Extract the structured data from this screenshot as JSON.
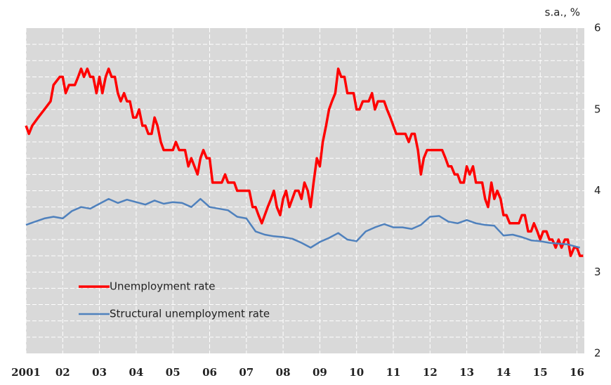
{
  "chart_data": {
    "type": "line",
    "unit_label": "s.a., %",
    "xlim": [
      2001,
      2016.2
    ],
    "ylim": [
      2,
      6
    ],
    "yticks": [
      2,
      3,
      4,
      5,
      6
    ],
    "ygrid": [
      2.2,
      2.4,
      2.6,
      2.8,
      3,
      3.2,
      3.4,
      3.6,
      3.8,
      4,
      4.2,
      4.4,
      4.6,
      4.8,
      5,
      5.2,
      5.4,
      5.6,
      5.8
    ],
    "xticks": [
      {
        "value": 2001,
        "label": "2001"
      },
      {
        "value": 2002,
        "label": "02"
      },
      {
        "value": 2003,
        "label": "03"
      },
      {
        "value": 2004,
        "label": "04"
      },
      {
        "value": 2005,
        "label": "05"
      },
      {
        "value": 2006,
        "label": "06"
      },
      {
        "value": 2007,
        "label": "07"
      },
      {
        "value": 2008,
        "label": "08"
      },
      {
        "value": 2009,
        "label": "09"
      },
      {
        "value": 2010,
        "label": "10"
      },
      {
        "value": 2011,
        "label": "11"
      },
      {
        "value": 2012,
        "label": "12"
      },
      {
        "value": 2013,
        "label": "13"
      },
      {
        "value": 2014,
        "label": "14"
      },
      {
        "value": 2015,
        "label": "15"
      },
      {
        "value": 2016,
        "label": "16"
      }
    ],
    "grid": true,
    "legend": "lower-left",
    "series": [
      {
        "name": "Unemployment rate",
        "color": "#ff0000",
        "width": 3.5,
        "x": [
          2001.0,
          2001.08,
          2001.17,
          2001.33,
          2001.5,
          2001.67,
          2001.75,
          2001.92,
          2002.0,
          2002.08,
          2002.17,
          2002.33,
          2002.42,
          2002.5,
          2002.58,
          2002.67,
          2002.75,
          2002.83,
          2002.92,
          2003.0,
          2003.08,
          2003.17,
          2003.25,
          2003.33,
          2003.42,
          2003.5,
          2003.58,
          2003.67,
          2003.75,
          2003.83,
          2003.92,
          2004.0,
          2004.08,
          2004.17,
          2004.25,
          2004.33,
          2004.42,
          2004.5,
          2004.58,
          2004.67,
          2004.75,
          2004.83,
          2005.0,
          2005.08,
          2005.17,
          2005.33,
          2005.42,
          2005.5,
          2005.67,
          2005.75,
          2005.83,
          2005.92,
          2006.0,
          2006.08,
          2006.25,
          2006.33,
          2006.42,
          2006.5,
          2006.67,
          2006.75,
          2006.92,
          2007.0,
          2007.08,
          2007.17,
          2007.25,
          2007.33,
          2007.42,
          2007.5,
          2007.58,
          2007.67,
          2007.75,
          2007.83,
          2007.92,
          2008.0,
          2008.08,
          2008.17,
          2008.25,
          2008.33,
          2008.42,
          2008.5,
          2008.58,
          2008.67,
          2008.75,
          2008.83,
          2008.92,
          2009.0,
          2009.08,
          2009.17,
          2009.25,
          2009.33,
          2009.42,
          2009.5,
          2009.58,
          2009.67,
          2009.75,
          2009.83,
          2009.92,
          2010.0,
          2010.08,
          2010.17,
          2010.25,
          2010.33,
          2010.42,
          2010.5,
          2010.58,
          2010.67,
          2010.75,
          2010.83,
          2010.92,
          2011.0,
          2011.08,
          2011.17,
          2011.33,
          2011.42,
          2011.5,
          2011.58,
          2011.67,
          2011.75,
          2011.83,
          2011.92,
          2012.0,
          2012.17,
          2012.33,
          2012.42,
          2012.5,
          2012.58,
          2012.67,
          2012.75,
          2012.83,
          2012.92,
          2013.0,
          2013.08,
          2013.17,
          2013.25,
          2013.33,
          2013.42,
          2013.5,
          2013.58,
          2013.67,
          2013.75,
          2013.83,
          2013.92,
          2014.0,
          2014.08,
          2014.17,
          2014.33,
          2014.42,
          2014.5,
          2014.58,
          2014.67,
          2014.75,
          2014.83,
          2014.92,
          2015.0,
          2015.08,
          2015.17,
          2015.25,
          2015.33,
          2015.42,
          2015.5,
          2015.58,
          2015.67,
          2015.75,
          2015.83,
          2015.92,
          2016.0,
          2016.08,
          2016.17
        ],
        "values": [
          4.8,
          4.7,
          4.8,
          4.9,
          5.0,
          5.1,
          5.3,
          5.4,
          5.4,
          5.2,
          5.3,
          5.3,
          5.4,
          5.5,
          5.4,
          5.5,
          5.4,
          5.4,
          5.2,
          5.4,
          5.2,
          5.4,
          5.5,
          5.4,
          5.4,
          5.2,
          5.1,
          5.2,
          5.1,
          5.1,
          4.9,
          4.9,
          5.0,
          4.8,
          4.8,
          4.7,
          4.7,
          4.9,
          4.8,
          4.6,
          4.5,
          4.5,
          4.5,
          4.6,
          4.5,
          4.5,
          4.3,
          4.4,
          4.2,
          4.4,
          4.5,
          4.4,
          4.4,
          4.1,
          4.1,
          4.1,
          4.2,
          4.1,
          4.1,
          4.0,
          4.0,
          4.0,
          4.0,
          3.8,
          3.8,
          3.7,
          3.6,
          3.7,
          3.8,
          3.9,
          4.0,
          3.8,
          3.7,
          3.9,
          4.0,
          3.8,
          3.9,
          4.0,
          4.0,
          3.9,
          4.1,
          4.0,
          3.8,
          4.1,
          4.4,
          4.3,
          4.6,
          4.8,
          5.0,
          5.1,
          5.2,
          5.5,
          5.4,
          5.4,
          5.2,
          5.2,
          5.2,
          5.0,
          5.0,
          5.1,
          5.1,
          5.1,
          5.2,
          5.0,
          5.1,
          5.1,
          5.1,
          5.0,
          4.9,
          4.8,
          4.7,
          4.7,
          4.7,
          4.6,
          4.7,
          4.7,
          4.5,
          4.2,
          4.4,
          4.5,
          4.5,
          4.5,
          4.5,
          4.4,
          4.3,
          4.3,
          4.2,
          4.2,
          4.1,
          4.1,
          4.3,
          4.2,
          4.3,
          4.1,
          4.1,
          4.1,
          3.9,
          3.8,
          4.1,
          3.9,
          4.0,
          3.9,
          3.7,
          3.7,
          3.6,
          3.6,
          3.6,
          3.7,
          3.7,
          3.5,
          3.5,
          3.6,
          3.5,
          3.4,
          3.5,
          3.5,
          3.4,
          3.4,
          3.3,
          3.4,
          3.3,
          3.4,
          3.4,
          3.2,
          3.3,
          3.3,
          3.2,
          3.2
        ]
      },
      {
        "name": "Structural unemployment rate",
        "color": "#4f81bd",
        "width": 2.5,
        "x": [
          2001.0,
          2001.5,
          2001.75,
          2002.0,
          2002.25,
          2002.5,
          2002.75,
          2003.0,
          2003.25,
          2003.5,
          2003.75,
          2004.0,
          2004.25,
          2004.5,
          2004.75,
          2005.0,
          2005.25,
          2005.5,
          2005.75,
          2006.0,
          2006.5,
          2006.75,
          2007.0,
          2007.25,
          2007.5,
          2007.75,
          2008.0,
          2008.25,
          2008.5,
          2008.75,
          2009.0,
          2009.25,
          2009.5,
          2009.75,
          2010.0,
          2010.25,
          2010.5,
          2010.75,
          2011.0,
          2011.25,
          2011.5,
          2011.75,
          2012.0,
          2012.25,
          2012.5,
          2012.75,
          2013.0,
          2013.25,
          2013.5,
          2013.75,
          2014.0,
          2014.25,
          2014.5,
          2014.75,
          2015.0,
          2015.25,
          2015.5,
          2015.75,
          2016.0,
          2016.08
        ],
        "values": [
          3.58,
          3.66,
          3.68,
          3.66,
          3.75,
          3.8,
          3.78,
          3.84,
          3.9,
          3.85,
          3.89,
          3.86,
          3.83,
          3.88,
          3.84,
          3.86,
          3.85,
          3.8,
          3.9,
          3.8,
          3.76,
          3.68,
          3.66,
          3.5,
          3.46,
          3.44,
          3.43,
          3.41,
          3.36,
          3.3,
          3.37,
          3.42,
          3.48,
          3.4,
          3.38,
          3.5,
          3.55,
          3.59,
          3.55,
          3.55,
          3.53,
          3.58,
          3.68,
          3.69,
          3.62,
          3.6,
          3.64,
          3.6,
          3.58,
          3.57,
          3.45,
          3.46,
          3.43,
          3.39,
          3.38,
          3.36,
          3.35,
          3.34,
          3.31,
          3.3
        ]
      }
    ]
  }
}
